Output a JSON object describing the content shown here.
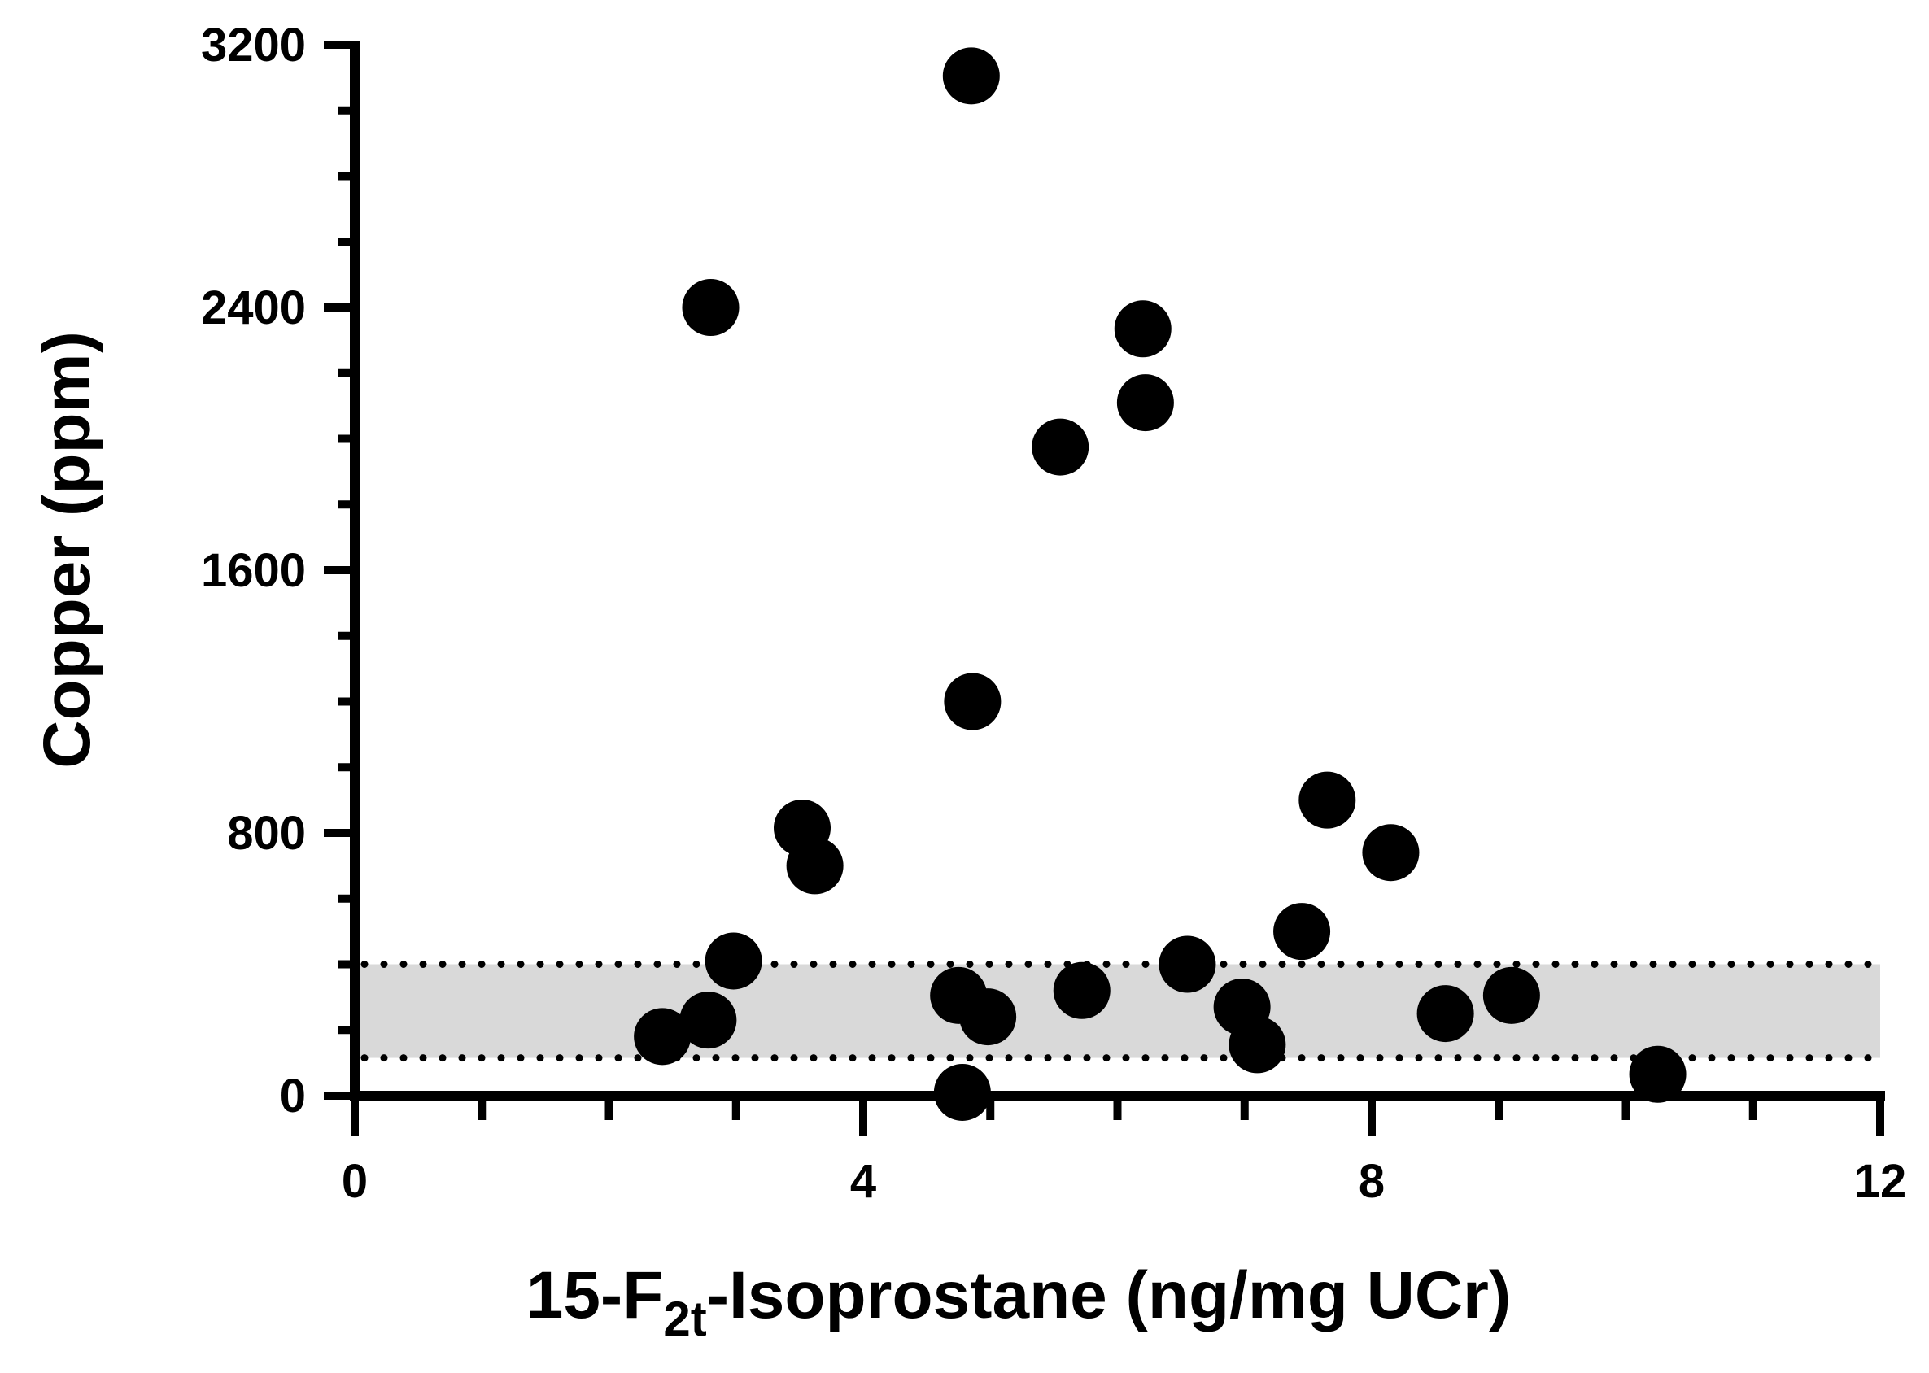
{
  "chart_data": {
    "type": "scatter",
    "xlabel_parts": {
      "pre": "15-F",
      "sub": "2t",
      "post": "-Isoprostane (ng/mg UCr)"
    },
    "ylabel": "Copper (ppm)",
    "xlim": [
      0,
      12
    ],
    "ylim": [
      0,
      3200
    ],
    "x_ticks": [
      0,
      4,
      8,
      12
    ],
    "x_tick_labels": [
      "0",
      "4",
      "8",
      "12"
    ],
    "x_minor_step": 1,
    "y_ticks": [
      0,
      800,
      1600,
      2400,
      3200
    ],
    "y_tick_labels": [
      "0",
      "800",
      "1600",
      "2400",
      "3200"
    ],
    "y_minor_step": 200,
    "reference_band": {
      "y_low": 115,
      "y_high": 400,
      "x_range": [
        0,
        12
      ],
      "fill": "#d9d9d9",
      "line_style": "dotted"
    },
    "grid": false,
    "marker_color": "#000000",
    "points": [
      {
        "x": 2.42,
        "y": 180
      },
      {
        "x": 2.78,
        "y": 230
      },
      {
        "x": 2.8,
        "y": 2400
      },
      {
        "x": 2.98,
        "y": 410
      },
      {
        "x": 3.52,
        "y": 815
      },
      {
        "x": 3.62,
        "y": 700
      },
      {
        "x": 4.75,
        "y": 305
      },
      {
        "x": 4.78,
        "y": 10
      },
      {
        "x": 4.85,
        "y": 3105
      },
      {
        "x": 4.86,
        "y": 1200
      },
      {
        "x": 4.98,
        "y": 240
      },
      {
        "x": 5.55,
        "y": 1975
      },
      {
        "x": 5.72,
        "y": 320
      },
      {
        "x": 6.2,
        "y": 2335
      },
      {
        "x": 6.22,
        "y": 2110
      },
      {
        "x": 6.55,
        "y": 400
      },
      {
        "x": 6.98,
        "y": 270
      },
      {
        "x": 7.1,
        "y": 155
      },
      {
        "x": 7.45,
        "y": 500
      },
      {
        "x": 7.65,
        "y": 900
      },
      {
        "x": 8.15,
        "y": 740
      },
      {
        "x": 8.58,
        "y": 250
      },
      {
        "x": 9.1,
        "y": 305
      },
      {
        "x": 10.25,
        "y": 65
      }
    ]
  }
}
